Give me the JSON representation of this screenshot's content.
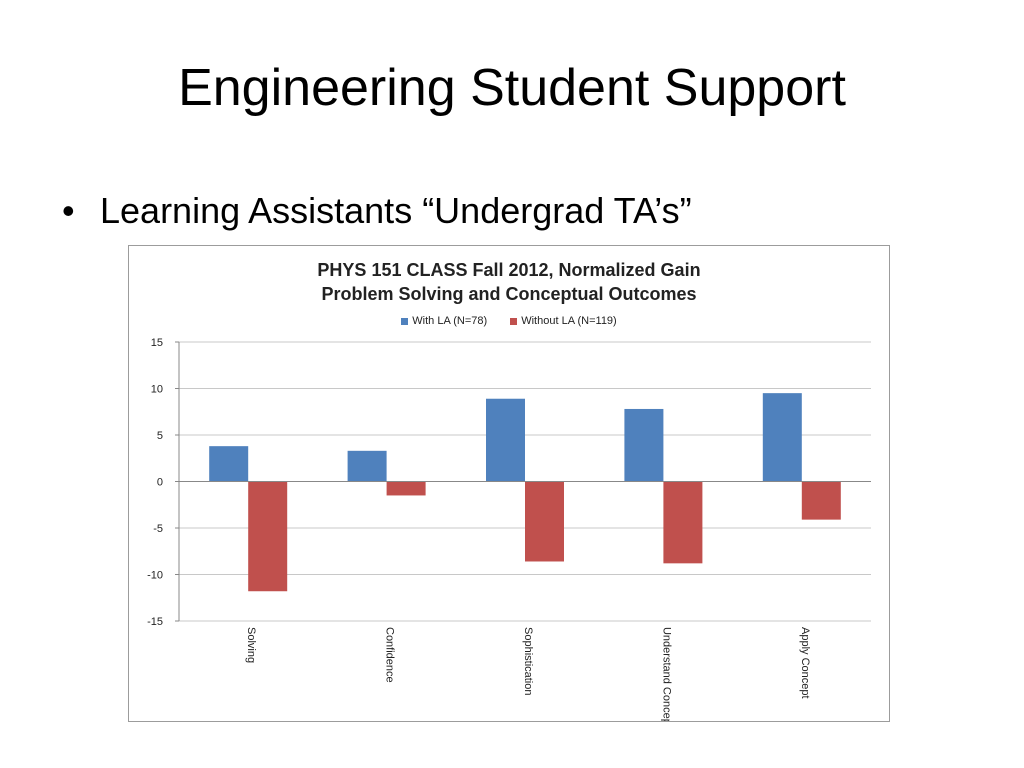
{
  "slide": {
    "title": "Engineering Student Support",
    "bullet": "Learning Assistants “Undergrad TA’s”",
    "bullet_symbol": "•"
  },
  "chart_data": {
    "type": "bar",
    "title_line1": "PHYS 151 CLASS Fall 2012, Normalized Gain",
    "title_line2": "Problem Solving and Conceptual Outcomes",
    "categories": [
      "Solving",
      "Confidence",
      "Sophistication",
      "Understand Concept",
      "Apply Concept"
    ],
    "series": [
      {
        "name": "With LA (N=78)",
        "color": "#4f81bd",
        "values": [
          3.8,
          3.3,
          8.9,
          7.8,
          9.5
        ]
      },
      {
        "name": "Without LA (N=119)",
        "color": "#c0504d",
        "values": [
          -11.8,
          -1.5,
          -8.6,
          -8.8,
          -4.1
        ]
      }
    ],
    "ylim": [
      -15,
      15
    ],
    "yticks": [
      15,
      10,
      5,
      0,
      -5,
      -10,
      -15
    ],
    "grid": true,
    "legend_position": "top"
  }
}
